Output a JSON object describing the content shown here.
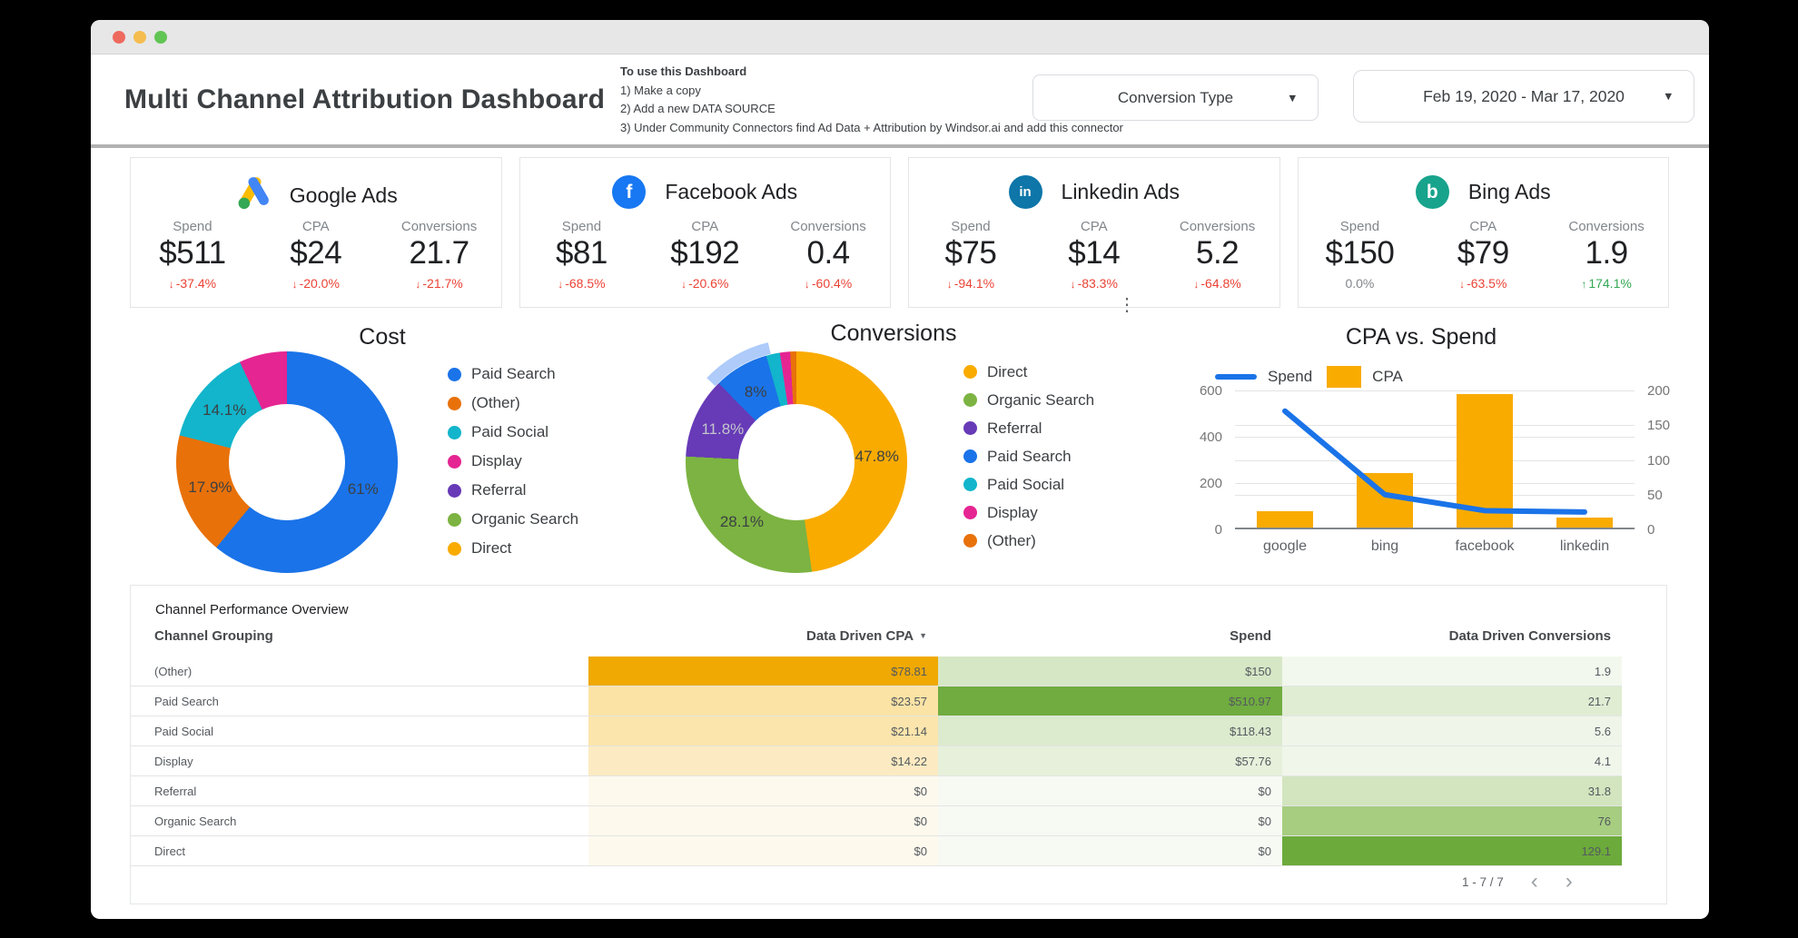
{
  "window": {
    "traffic_lights": [
      "#EE6A5F",
      "#F5BD4F",
      "#61C554"
    ]
  },
  "header": {
    "title": "Multi Channel Attribution Dashboard",
    "instructions": {
      "heading": "To use this Dashboard",
      "steps": [
        "1) Make a copy",
        "2) Add a new DATA SOURCE",
        "3) Under Community Connectors find Ad Data + Attribution by Windsor.ai and add this connector"
      ]
    },
    "conversion_type": {
      "label": "Conversion Type"
    },
    "date_range": {
      "value": "Feb 19, 2020 - Mar 17, 2020"
    }
  },
  "icons": {
    "caret_down": "▾",
    "sort_desc": "▼",
    "kebab": "⋮",
    "arrow_down": "↓",
    "arrow_up": "↑",
    "chevron_left": "‹",
    "chevron_right": "›"
  },
  "colors": {
    "delta_down": "#EA4335",
    "delta_up": "#34A853",
    "delta_flat": "#80868B",
    "brand": {
      "google_yellow": "#FBBC04",
      "google_blue": "#4285F4",
      "google_green": "#34A853",
      "facebook": "#1877F2",
      "linkedin": "#0E76A8",
      "bing": "#17A38C"
    }
  },
  "kpi_cards": [
    {
      "name": "Google Ads",
      "icon": "google-ads-icon",
      "letter": "",
      "metrics": [
        {
          "label": "Spend",
          "value": "$511",
          "delta": "-37.4%",
          "direction": "down"
        },
        {
          "label": "CPA",
          "value": "$24",
          "delta": "-20.0%",
          "direction": "down"
        },
        {
          "label": "Conversions",
          "value": "21.7",
          "delta": "-21.7%",
          "direction": "down"
        }
      ]
    },
    {
      "name": "Facebook Ads",
      "icon": "facebook-icon",
      "letter": "f",
      "metrics": [
        {
          "label": "Spend",
          "value": "$81",
          "delta": "-68.5%",
          "direction": "down"
        },
        {
          "label": "CPA",
          "value": "$192",
          "delta": "-20.6%",
          "direction": "down"
        },
        {
          "label": "Conversions",
          "value": "0.4",
          "delta": "-60.4%",
          "direction": "down"
        }
      ]
    },
    {
      "name": "Linkedin Ads",
      "icon": "linkedin-icon",
      "letter": "in",
      "metrics": [
        {
          "label": "Spend",
          "value": "$75",
          "delta": "-94.1%",
          "direction": "down"
        },
        {
          "label": "CPA",
          "value": "$14",
          "delta": "-83.3%",
          "direction": "down"
        },
        {
          "label": "Conversions",
          "value": "5.2",
          "delta": "-64.8%",
          "direction": "down"
        }
      ]
    },
    {
      "name": "Bing Ads",
      "icon": "bing-icon",
      "letter": "b",
      "metrics": [
        {
          "label": "Spend",
          "value": "$150",
          "delta": "0.0%",
          "direction": "flat"
        },
        {
          "label": "CPA",
          "value": "$79",
          "delta": "-63.5%",
          "direction": "down"
        },
        {
          "label": "Conversions",
          "value": "1.9",
          "delta": "174.1%",
          "direction": "up"
        }
      ]
    }
  ],
  "chart_data": [
    {
      "type": "pie",
      "title": "Cost",
      "donut": true,
      "legend_position": "right",
      "slices": [
        {
          "label": "Paid Search",
          "value": 61.0,
          "display": "61%",
          "color": "#1A73E8"
        },
        {
          "label": "(Other)",
          "value": 17.9,
          "display": "17.9%",
          "color": "#E8710A"
        },
        {
          "label": "Paid Social",
          "value": 14.1,
          "display": "14.1%",
          "color": "#12B5CB"
        },
        {
          "label": "Display",
          "value": 7.0,
          "display": "",
          "color": "#E52592"
        }
      ],
      "legend": [
        {
          "label": "Paid Search",
          "color": "#1A73E8"
        },
        {
          "label": "(Other)",
          "color": "#E8710A"
        },
        {
          "label": "Paid Social",
          "color": "#12B5CB"
        },
        {
          "label": "Display",
          "color": "#E52592"
        },
        {
          "label": "Referral",
          "color": "#673AB7"
        },
        {
          "label": "Organic Search",
          "color": "#7CB342"
        },
        {
          "label": "Direct",
          "color": "#F9AB00"
        }
      ]
    },
    {
      "type": "pie",
      "title": "Conversions",
      "donut": true,
      "legend_position": "right",
      "slices": [
        {
          "label": "Direct",
          "value": 47.8,
          "display": "47.8%",
          "color": "#F9AB00"
        },
        {
          "label": "Organic Search",
          "value": 28.1,
          "display": "28.1%",
          "color": "#7CB342"
        },
        {
          "label": "Referral",
          "value": 11.8,
          "display": "11.8%",
          "color": "#673AB7",
          "label_color": "#C2C6CB"
        },
        {
          "label": "Paid Search",
          "value": 8.0,
          "display": "8%",
          "color": "#1A73E8"
        },
        {
          "label": "Paid Social",
          "value": 2.0,
          "display": "",
          "color": "#12B5CB"
        },
        {
          "label": "Display",
          "value": 1.5,
          "display": "",
          "color": "#E52592"
        },
        {
          "label": "(Other)",
          "value": 0.9,
          "display": "",
          "color": "#E8710A"
        }
      ],
      "highlight": {
        "target": "Paid Search",
        "start_pct": 87.0,
        "end_pct": 96.3,
        "color": "#AECBFA"
      },
      "legend": [
        {
          "label": "Direct",
          "color": "#F9AB00"
        },
        {
          "label": "Organic Search",
          "color": "#7CB342"
        },
        {
          "label": "Referral",
          "color": "#673AB7"
        },
        {
          "label": "Paid Search",
          "color": "#1A73E8"
        },
        {
          "label": "Paid Social",
          "color": "#12B5CB"
        },
        {
          "label": "Display",
          "color": "#E52592"
        },
        {
          "label": "(Other)",
          "color": "#E8710A"
        }
      ]
    },
    {
      "type": "combo",
      "title": "CPA vs. Spend",
      "categories": [
        "google",
        "bing",
        "facebook",
        "linkedin"
      ],
      "series": [
        {
          "name": "Spend",
          "chart": "line",
          "axis": "left",
          "color": "#1A73E8",
          "values": [
            511,
            150,
            81,
            75
          ]
        },
        {
          "name": "CPA",
          "chart": "bar",
          "axis": "right",
          "color": "#F9AB00",
          "values": [
            24,
            79,
            192,
            14
          ]
        }
      ],
      "left_axis": {
        "min": 0,
        "max": 600,
        "ticks": [
          0,
          200,
          400,
          600
        ]
      },
      "right_axis": {
        "min": 0,
        "max": 200,
        "ticks": [
          0,
          50,
          100,
          150,
          200
        ]
      },
      "grid": true,
      "legend_position": "top"
    }
  ],
  "table": {
    "title": "Channel Performance Overview",
    "columns": [
      "Channel Grouping",
      "Data Driven CPA",
      "Spend",
      "Data Driven Conversions"
    ],
    "sorted_by": "Data Driven CPA",
    "rows": [
      {
        "channel": "(Other)",
        "cpa": "$78.81",
        "cpa_bg": "#EFA902",
        "spend": "$150",
        "spend_bg": "#D6E7C6",
        "conversions": "1.9",
        "conv_bg": "#F3F8EE"
      },
      {
        "channel": "Paid Search",
        "cpa": "$23.57",
        "cpa_bg": "#FBE3A6",
        "spend": "$510.97",
        "spend_bg": "#70AC40",
        "conversions": "21.7",
        "conv_bg": "#E0EDD3"
      },
      {
        "channel": "Paid Social",
        "cpa": "$21.14",
        "cpa_bg": "#FBE5AC",
        "spend": "$118.43",
        "spend_bg": "#DCEACE",
        "conversions": "5.6",
        "conv_bg": "#EFF5E9"
      },
      {
        "channel": "Display",
        "cpa": "$14.22",
        "cpa_bg": "#FCEBC2",
        "spend": "$57.76",
        "spend_bg": "#E6F0DB",
        "conversions": "4.1",
        "conv_bg": "#F0F6EA"
      },
      {
        "channel": "Referral",
        "cpa": "$0",
        "cpa_bg": "#FDF9ED",
        "spend": "$0",
        "spend_bg": "#F7FAF3",
        "conversions": "31.8",
        "conv_bg": "#D2E5BF"
      },
      {
        "channel": "Organic Search",
        "cpa": "$0",
        "cpa_bg": "#FDF9ED",
        "spend": "$0",
        "spend_bg": "#F7FAF3",
        "conversions": "76",
        "conv_bg": "#A6CD80"
      },
      {
        "channel": "Direct",
        "cpa": "$0",
        "cpa_bg": "#FDF9ED",
        "spend": "$0",
        "spend_bg": "#F7FAF3",
        "conversions": "129.1",
        "conv_bg": "#6CAA3B"
      }
    ],
    "pagination": {
      "label": "1 - 7 / 7"
    }
  }
}
